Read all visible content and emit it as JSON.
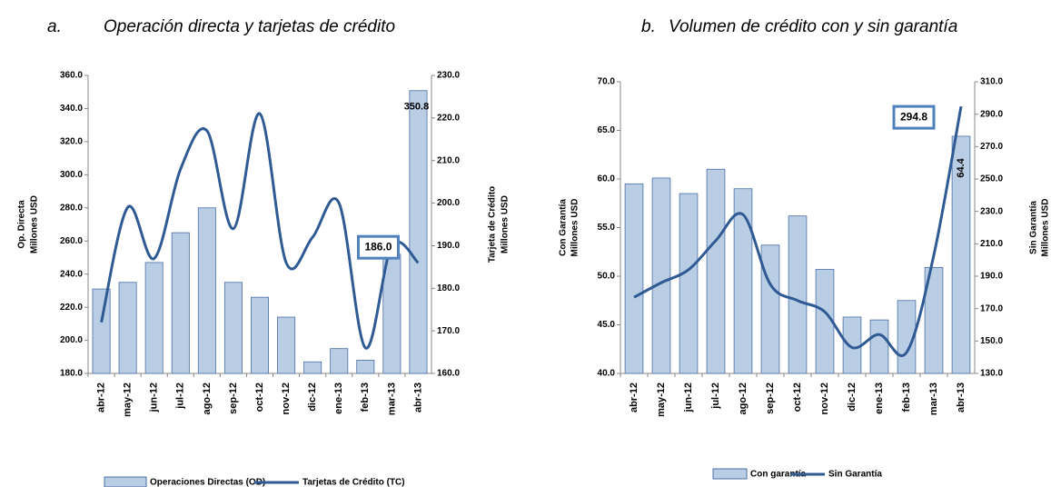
{
  "chart_data": [
    {
      "type": "bar",
      "panel_label": "a.",
      "title": "Operación directa y tarjetas de crédito",
      "categories": [
        "abr-12",
        "may-12",
        "jun-12",
        "jul-12",
        "ago-12",
        "sep-12",
        "oct-12",
        "nov-12",
        "dic-12",
        "ene-13",
        "feb-13",
        "mar-13",
        "abr-13"
      ],
      "ylabel": [
        "Op. Directa",
        "Millones USD"
      ],
      "y2label": [
        "Tarjeta de Crédito",
        "Millones USD"
      ],
      "ylim": [
        180,
        360
      ],
      "yticks": [
        {
          "value": 180,
          "label": "180.0"
        },
        {
          "value": 200,
          "label": "200.0"
        },
        {
          "value": 220,
          "label": "220.0"
        },
        {
          "value": 240,
          "label": "240.0"
        },
        {
          "value": 260,
          "label": "260.0"
        },
        {
          "value": 280,
          "label": "280.0"
        },
        {
          "value": 300,
          "label": "300.0"
        },
        {
          "value": 320,
          "label": "320.0"
        },
        {
          "value": 340,
          "label": "340.0"
        },
        {
          "value": 360,
          "label": "360.0"
        }
      ],
      "y2lim": [
        160,
        230
      ],
      "y2ticks": [
        {
          "value": 160,
          "label": "160.0"
        },
        {
          "value": 170,
          "label": "170.0"
        },
        {
          "value": 180,
          "label": "180.0"
        },
        {
          "value": 190,
          "label": "190.0"
        },
        {
          "value": 200,
          "label": "200.0"
        },
        {
          "value": 210,
          "label": "210.0"
        },
        {
          "value": 220,
          "label": "220.0"
        },
        {
          "value": 230,
          "label": "230.0"
        }
      ],
      "series": [
        {
          "name": "Operaciones Directas (OD)",
          "type": "bar",
          "color": "#b9cde5",
          "values": [
            231,
            235,
            247,
            265,
            280,
            235,
            226,
            214,
            187,
            195,
            188,
            252,
            350.8
          ],
          "value_labels": [
            null,
            null,
            null,
            null,
            null,
            null,
            null,
            null,
            null,
            null,
            null,
            null,
            "350.8"
          ]
        },
        {
          "name": "Tarjetas de Crédito (TC)",
          "type": "line",
          "axis": "y2",
          "color": "#2f5a93",
          "values": [
            172,
            199,
            187,
            208,
            217,
            194,
            221,
            186,
            192,
            200,
            166,
            190,
            186
          ],
          "value_labels": [
            null,
            null,
            null,
            null,
            null,
            null,
            null,
            null,
            null,
            null,
            null,
            null,
            "186.0"
          ]
        }
      ]
    },
    {
      "type": "bar",
      "panel_label": "b.",
      "title": "Volumen de crédito con y sin garantía",
      "categories": [
        "abr-12",
        "may-12",
        "jun-12",
        "jul-12",
        "ago-12",
        "sep-12",
        "oct-12",
        "nov-12",
        "dic-12",
        "ene-13",
        "feb-13",
        "mar-13",
        "abr-13"
      ],
      "ylabel": [
        "Con Garantía",
        "Millones USD"
      ],
      "y2label": [
        "Sin Garantía",
        "Millones USD"
      ],
      "ylim": [
        40,
        70
      ],
      "yticks": [
        {
          "value": 40,
          "label": "40.0"
        },
        {
          "value": 45,
          "label": "45.0"
        },
        {
          "value": 50,
          "label": "50.0"
        },
        {
          "value": 55,
          "label": "55.0"
        },
        {
          "value": 60,
          "label": "60.0"
        },
        {
          "value": 65,
          "label": "65.0"
        },
        {
          "value": 70,
          "label": "70.0"
        }
      ],
      "y2lim": [
        130,
        310
      ],
      "y2ticks": [
        {
          "value": 130,
          "label": "130.0"
        },
        {
          "value": 150,
          "label": "150.0"
        },
        {
          "value": 170,
          "label": "170.0"
        },
        {
          "value": 190,
          "label": "190.0"
        },
        {
          "value": 210,
          "label": "210.0"
        },
        {
          "value": 230,
          "label": "230.0"
        },
        {
          "value": 250,
          "label": "250.0"
        },
        {
          "value": 270,
          "label": "270.0"
        },
        {
          "value": 290,
          "label": "290.0"
        },
        {
          "value": 310,
          "label": "310.0"
        }
      ],
      "series": [
        {
          "name": "Con garantía",
          "type": "bar",
          "color": "#b9cde5",
          "values": [
            59.5,
            60.1,
            58.5,
            61.0,
            59.0,
            53.2,
            56.2,
            50.7,
            45.8,
            45.5,
            47.5,
            50.9,
            64.4
          ],
          "value_labels": [
            null,
            null,
            null,
            null,
            null,
            null,
            null,
            null,
            null,
            null,
            null,
            null,
            "64.4"
          ]
        },
        {
          "name": "Sin Garantía",
          "type": "line",
          "axis": "y2",
          "color": "#2f5a93",
          "values": [
            177,
            186,
            194,
            212,
            228,
            185,
            175,
            168,
            146,
            154,
            143,
            203,
            294.8
          ],
          "value_labels": [
            null,
            null,
            null,
            null,
            null,
            null,
            null,
            null,
            null,
            null,
            null,
            null,
            "294.8"
          ]
        }
      ]
    }
  ]
}
